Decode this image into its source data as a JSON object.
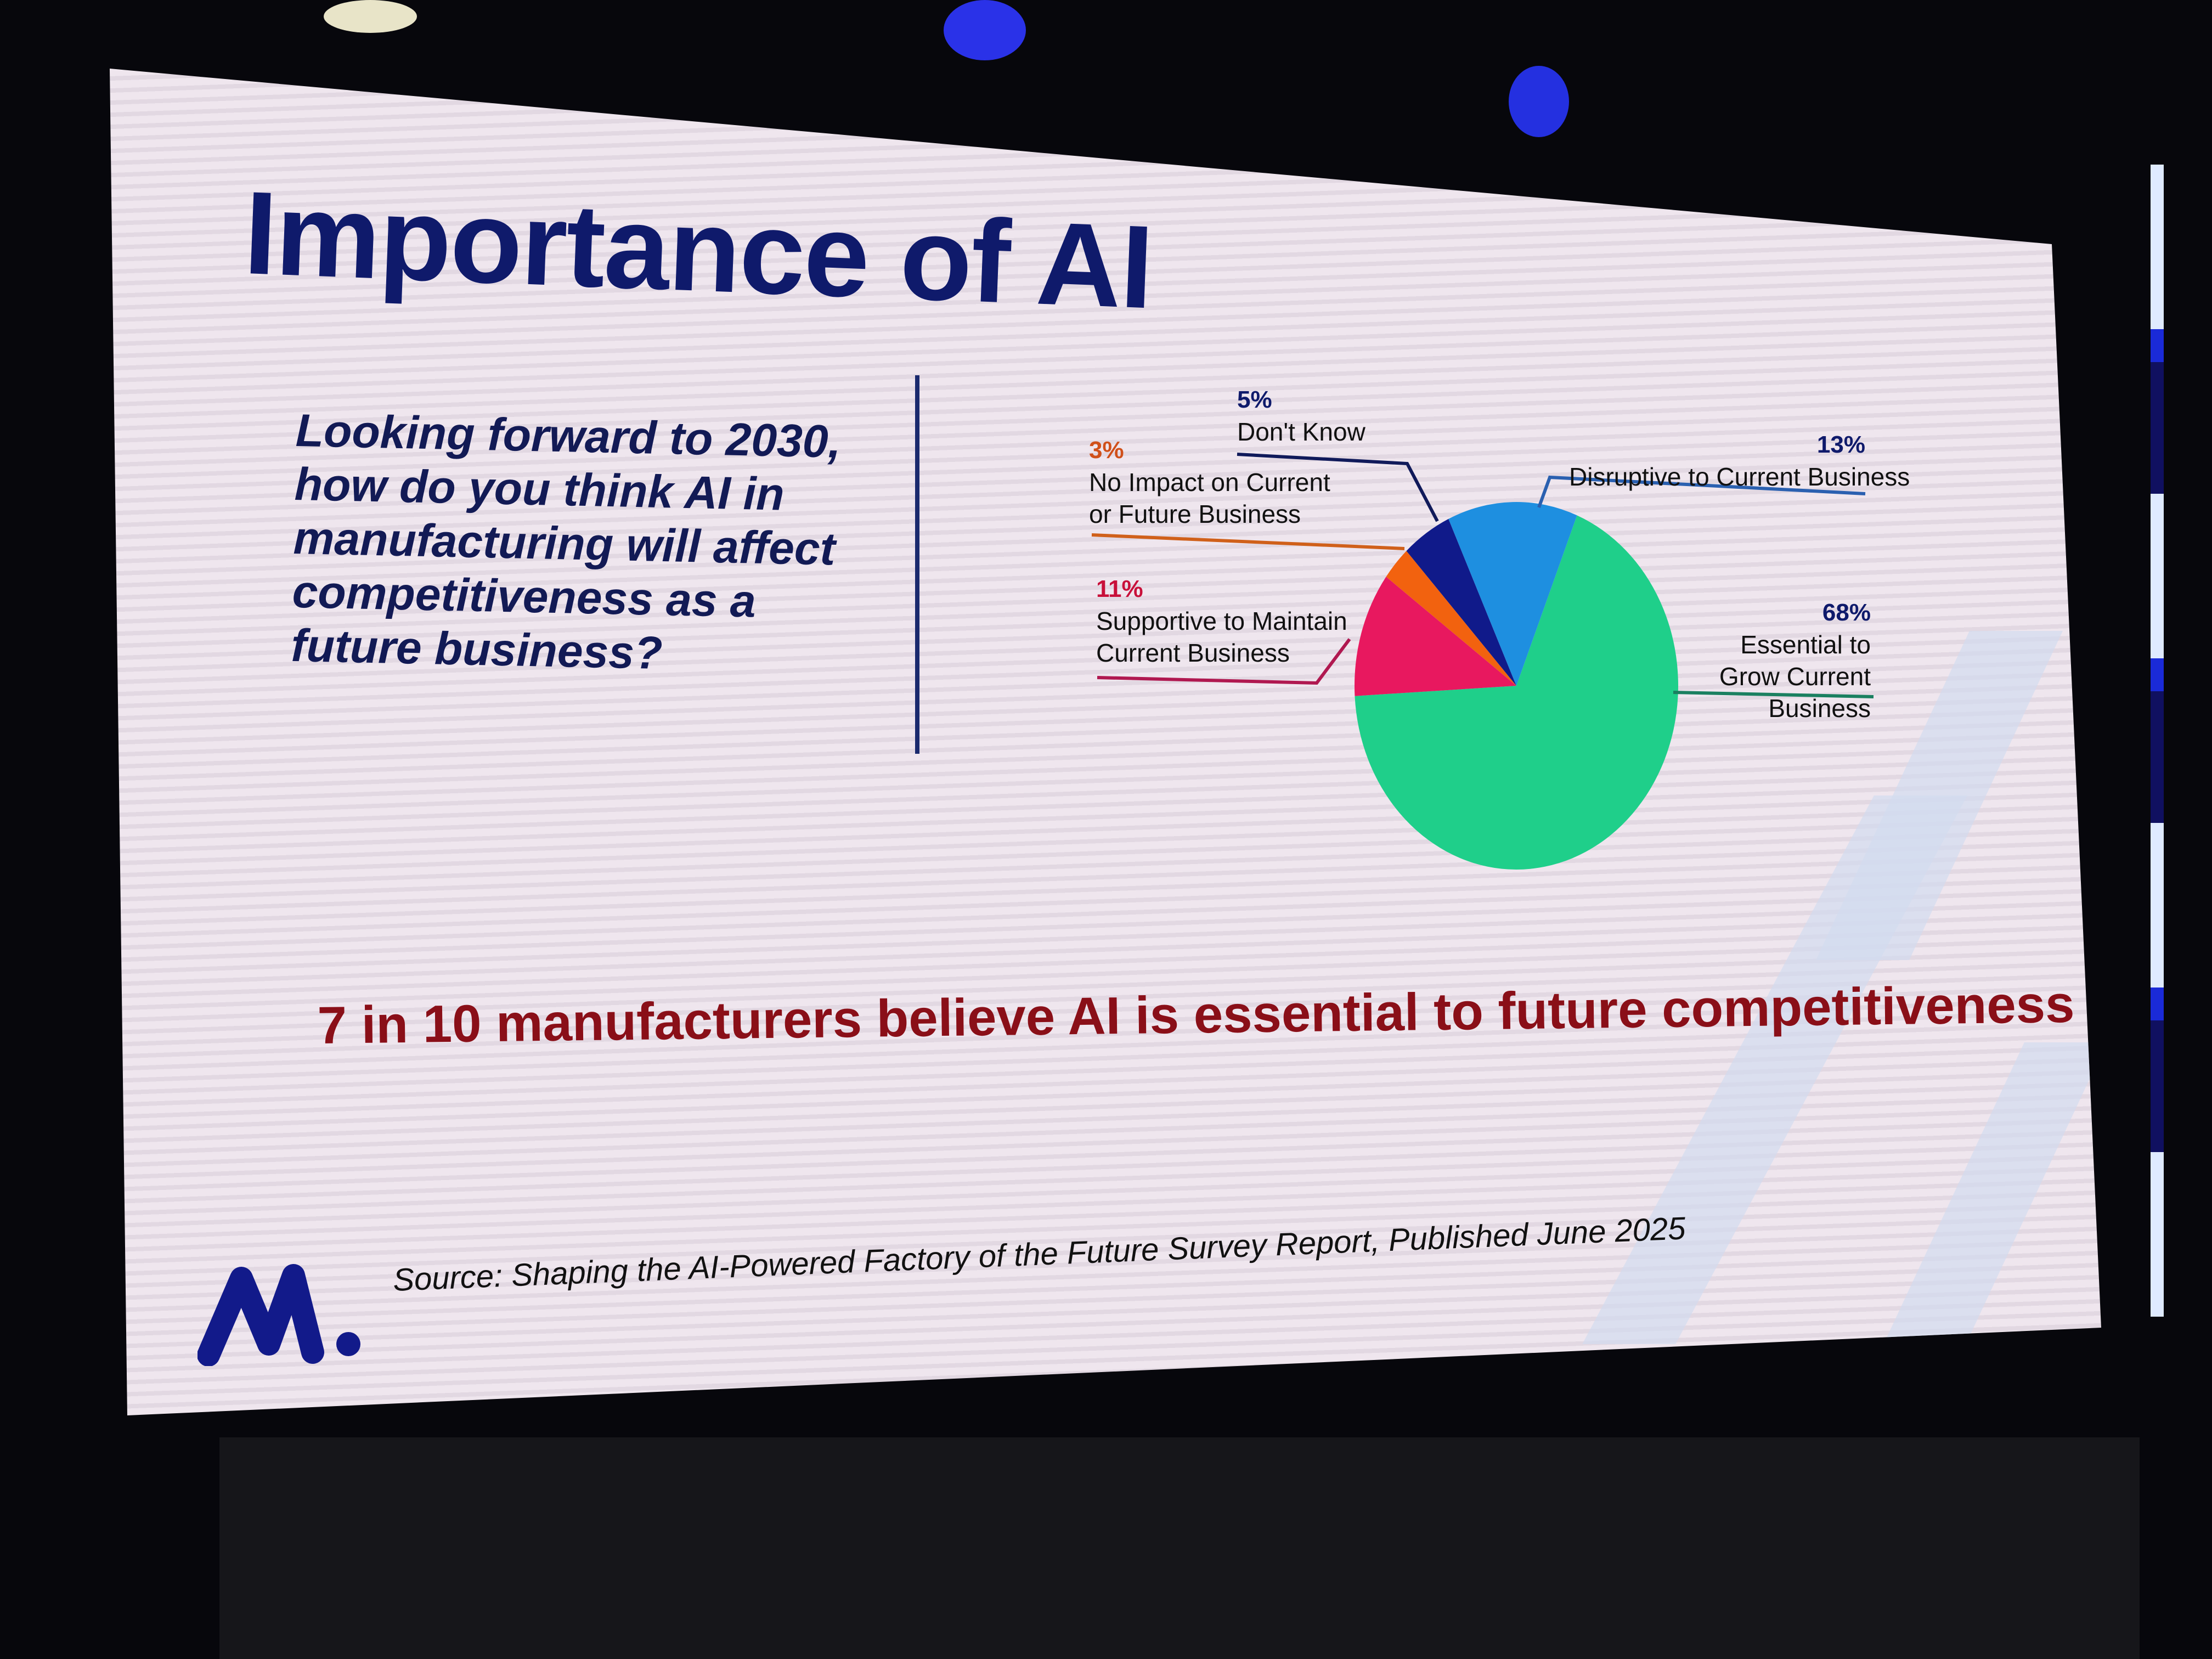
{
  "slide": {
    "title": "Importance of AI",
    "question": "Looking forward to 2030, how do you think AI in manufacturing will affect competitiveness as a future business?",
    "headline": "7 in 10 manufacturers believe AI is essential to future competitiveness",
    "source": "Source: Shaping the AI-Powered Factory of the Future Survey Report, Published June 2025",
    "logo_text": "M."
  },
  "chart_data": {
    "type": "pie",
    "title": "",
    "slices": [
      {
        "label": "Essential to Grow Current Business",
        "value": 68,
        "display": "68%",
        "color": "#1fcf8a"
      },
      {
        "label": "Supportive to Maintain Current Business",
        "value": 11,
        "display": "11%",
        "color": "#e8185f"
      },
      {
        "label": "No Impact on Current or Future Business",
        "value": 3,
        "display": "3%",
        "color": "#f2620f"
      },
      {
        "label": "Don't Know",
        "value": 5,
        "display": "5%",
        "color": "#101a8a"
      },
      {
        "label": "Disruptive to Current Business",
        "value": 13,
        "display": "13%",
        "color": "#1e8fe0"
      }
    ],
    "legend": "callout-labels"
  },
  "colors": {
    "title": "#0f1a6b",
    "headline": "#8a0f18",
    "pct_navy": "#0f1a6b"
  }
}
